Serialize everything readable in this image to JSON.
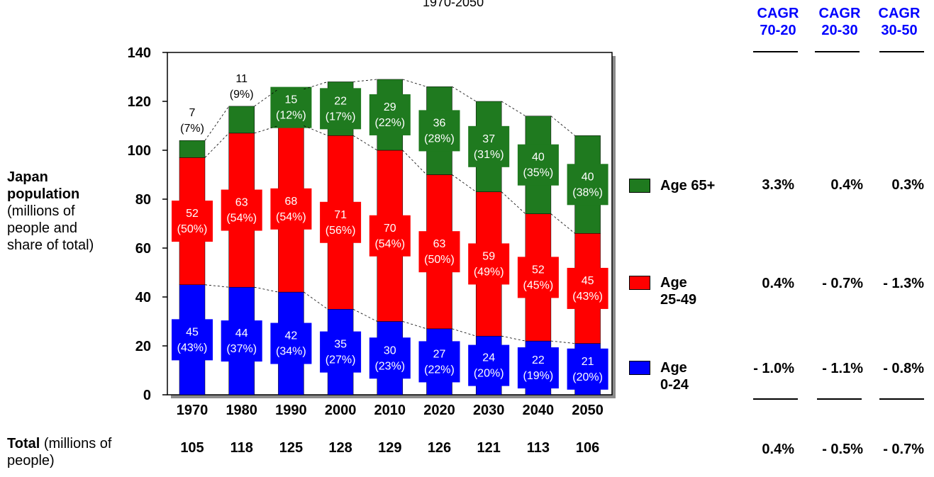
{
  "subtitle": "1970-2050",
  "y_axis_label": {
    "bold": "Japan population",
    "normal": "(millions of people and share of total)"
  },
  "total_label": {
    "bold": "Total",
    "normal": " (millions of people)"
  },
  "totals": [
    "105",
    "118",
    "125",
    "128",
    "129",
    "126",
    "121",
    "113",
    "106"
  ],
  "cagr_headers": [
    {
      "line1": "CAGR",
      "line2": "70-20"
    },
    {
      "line1": "CAGR",
      "line2": "20-30"
    },
    {
      "line1": "CAGR",
      "line2": "30-50"
    }
  ],
  "legend": [
    {
      "label1": "Age 65+",
      "label2": "",
      "color": "#1f7a1f",
      "cagr": [
        "3.3%",
        "0.4%",
        "0.3%"
      ]
    },
    {
      "label1": "Age",
      "label2": "25-49",
      "color": "#ff0000",
      "cagr": [
        "0.4%",
        "- 0.7%",
        "- 1.3%"
      ]
    },
    {
      "label1": "Age",
      "label2": "0-24",
      "color": "#0000ff",
      "cagr": [
        "- 1.0%",
        "- 1.1%",
        "- 0.8%"
      ]
    }
  ],
  "total_cagr": [
    "0.4%",
    "- 0.5%",
    "- 0.7%"
  ],
  "chart_data": {
    "type": "bar",
    "stacked": true,
    "categories": [
      "1970",
      "1980",
      "1990",
      "2000",
      "2010",
      "2020",
      "2030",
      "2040",
      "2050"
    ],
    "ylim": [
      0,
      140
    ],
    "yticks": [
      0,
      20,
      40,
      60,
      80,
      100,
      120,
      140
    ],
    "series": [
      {
        "name": "Age 0-24",
        "color": "#0000ff",
        "values": [
          45,
          44,
          42,
          35,
          30,
          27,
          24,
          22,
          21
        ],
        "labels": [
          "45",
          "44",
          "42",
          "35",
          "30",
          "27",
          "24",
          "22",
          "21"
        ],
        "shares": [
          "(43%)",
          "(37%)",
          "(34%)",
          "(27%)",
          "(23%)",
          "(22%)",
          "(20%)",
          "(19%)",
          "(20%)"
        ]
      },
      {
        "name": "Age 25-49",
        "color": "#ff0000",
        "values": [
          52,
          63,
          68,
          71,
          70,
          63,
          59,
          52,
          45
        ],
        "labels": [
          "52",
          "63",
          "68",
          "71",
          "70",
          "63",
          "59",
          "52",
          "45"
        ],
        "shares": [
          "(50%)",
          "(54%)",
          "(54%)",
          "(56%)",
          "(54%)",
          "(50%)",
          "(49%)",
          "(45%)",
          "(43%)"
        ]
      },
      {
        "name": "Age 65+",
        "color": "#1f7a1f",
        "values": [
          7,
          11,
          15,
          22,
          29,
          36,
          37,
          40,
          40
        ],
        "labels": [
          "7",
          "11",
          "15",
          "22",
          "29",
          "36",
          "37",
          "40",
          "40"
        ],
        "shares": [
          "(7%)",
          "(9%)",
          "(12%)",
          "(17%)",
          "(22%)",
          "(28%)",
          "(31%)",
          "(35%)",
          "(38%)"
        ]
      }
    ],
    "totals": [
      105,
      118,
      125,
      128,
      129,
      126,
      121,
      113,
      106
    ],
    "grid": false,
    "legend_position": "right"
  }
}
